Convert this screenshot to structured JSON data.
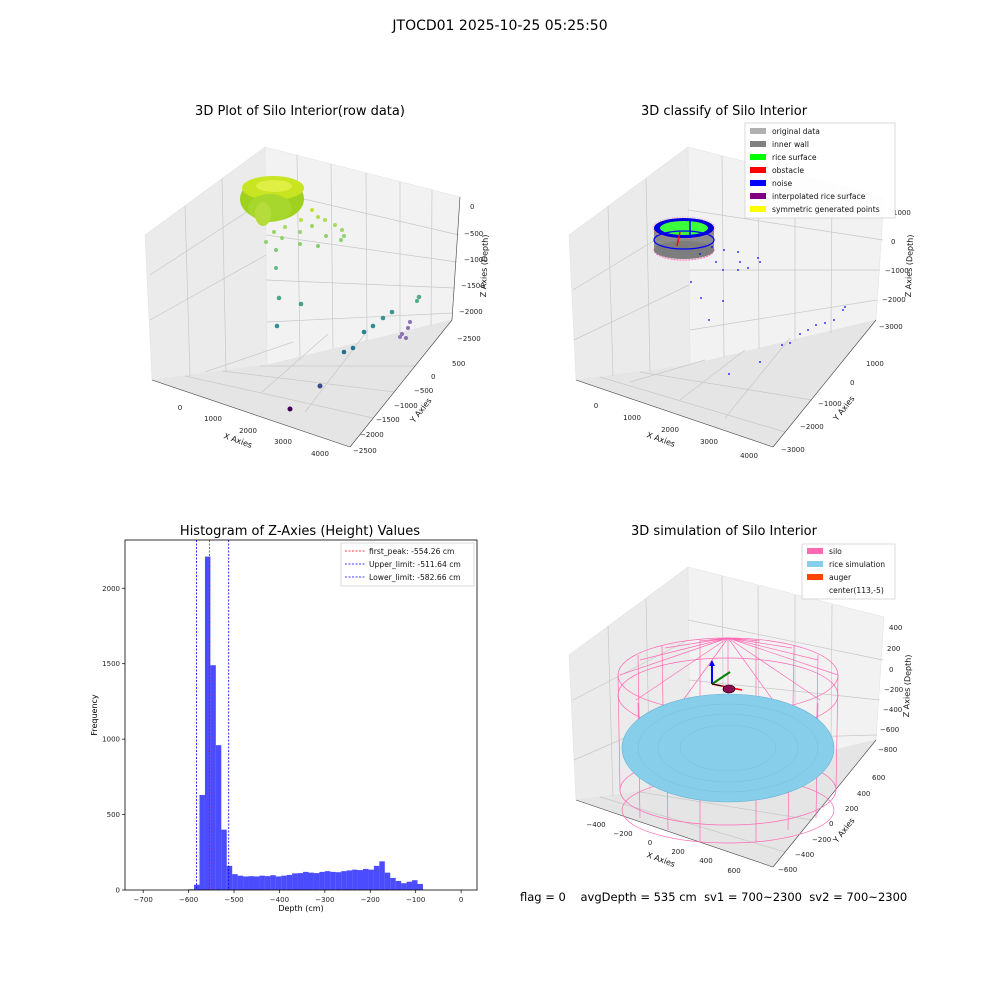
{
  "suptitle": "JTOCD01 2025-10-25 05:25:50",
  "panel1": {
    "title": "3D Plot of Silo Interior(row data)",
    "xlabel": "X Axies",
    "ylabel": "Y Axies",
    "zlabel": "Z Axies (Depth)",
    "xticks": [
      "0",
      "1000",
      "2000",
      "3000",
      "4000"
    ],
    "yticks": [
      "500",
      "0",
      "−500",
      "−1000",
      "−1500",
      "−2000",
      "−2500"
    ],
    "zticks": [
      "0",
      "−500",
      "−1000",
      "−1500",
      "−2000",
      "−2500"
    ],
    "colors": {
      "high": "#c8e021",
      "mid": "#2a9d8f",
      "low": "#440154"
    }
  },
  "panel2": {
    "title": "3D classify of Silo Interior",
    "xlabel": "X Axies",
    "ylabel": "Y Axies",
    "zlabel": "Z Axies (Depth)",
    "xticks": [
      "0",
      "1000",
      "2000",
      "3000",
      "4000"
    ],
    "yticks": [
      "1000",
      "0",
      "−1000",
      "−2000",
      "−3000"
    ],
    "zticks": [
      "1000",
      "0",
      "−1000",
      "−2000",
      "−3000"
    ],
    "legend": [
      {
        "label": "original data",
        "color": "#b0b0b0"
      },
      {
        "label": "inner wall",
        "color": "#808080"
      },
      {
        "label": "rice surface",
        "color": "#00ff00"
      },
      {
        "label": "obstacle",
        "color": "#ff0000"
      },
      {
        "label": "noise",
        "color": "#0000ff"
      },
      {
        "label": "interpolated rice surface",
        "color": "#800080"
      },
      {
        "label": "symmetric generated points",
        "color": "#ffff00"
      }
    ]
  },
  "panel4": {
    "title": "3D simulation of Silo Interior",
    "xlabel": "X Axies",
    "ylabel": "Y Axies",
    "zlabel": "Z Axies (Depth)",
    "xticks": [
      "−400",
      "−200",
      "0",
      "200",
      "400",
      "600"
    ],
    "yticks": [
      "600",
      "400",
      "200",
      "0",
      "−200",
      "−400",
      "−600"
    ],
    "zticks": [
      "400",
      "200",
      "0",
      "−200",
      "−400",
      "−600",
      "−800"
    ],
    "legend": [
      {
        "label": "silo",
        "color": "#ff69b4"
      },
      {
        "label": "rice simulation",
        "color": "#87ceeb"
      },
      {
        "label": "auger",
        "color": "#ff4500"
      },
      {
        "label": "center(113,-5)",
        "color": "#ffffff"
      }
    ]
  },
  "chart_data": {
    "type": "bar",
    "title": "Histogram of Z-Axies (Height) Values",
    "xlabel": "Depth (cm)",
    "ylabel": "Frequency",
    "xlim": [
      -740,
      35
    ],
    "ylim": [
      0,
      2320
    ],
    "xticks": [
      -700,
      -600,
      -500,
      -400,
      -300,
      -200,
      -100,
      0
    ],
    "yticks": [
      0,
      500,
      1000,
      1500,
      2000
    ],
    "bar_color": "#0000ff",
    "bin_start": -600,
    "bin_width": 12,
    "values": [
      5,
      35,
      630,
      2210,
      1490,
      960,
      400,
      160,
      105,
      95,
      90,
      92,
      90,
      95,
      92,
      98,
      90,
      95,
      100,
      110,
      112,
      120,
      115,
      112,
      120,
      125,
      120,
      118,
      125,
      130,
      135,
      132,
      140,
      135,
      160,
      190,
      115,
      80,
      60,
      45,
      55,
      65,
      40
    ],
    "vlines": [
      {
        "label": "first_peak: -554.26 cm",
        "x": -554.26,
        "color": "#ff0000"
      },
      {
        "label": "Upper_limit: -511.64 cm",
        "x": -511.64,
        "color": "#0000ff"
      },
      {
        "label": "Lower_limit: -582.66 cm",
        "x": -582.66,
        "color": "#0000ff"
      }
    ]
  },
  "footer": {
    "flag": "flag = 0",
    "avg": "avgDepth = 535 cm",
    "sv1": "sv1 = 700~2300",
    "sv2": "sv2 = 700~2300"
  }
}
